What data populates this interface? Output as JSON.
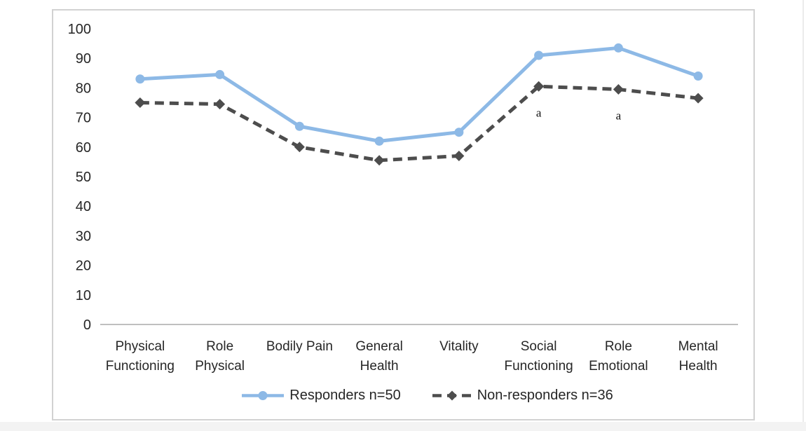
{
  "chart_data": {
    "type": "line",
    "title": "",
    "xlabel": "",
    "ylabel": "",
    "ylim": [
      0,
      100
    ],
    "yticks": [
      100,
      90,
      80,
      70,
      60,
      50,
      40,
      30,
      20,
      10,
      0
    ],
    "grid": false,
    "legend_position": "bottom",
    "categories": [
      [
        "Physical",
        "Functioning"
      ],
      [
        "Role",
        "Physical"
      ],
      [
        "Bodily Pain"
      ],
      [
        "General",
        "Health"
      ],
      [
        "Vitality"
      ],
      [
        "Social",
        "Functioning"
      ],
      [
        "Role",
        "Emotional"
      ],
      [
        "Mental",
        "Health"
      ]
    ],
    "series": [
      {
        "name": "Responders n=50",
        "values": [
          83,
          84.5,
          67,
          62,
          65,
          91,
          93.5,
          84
        ],
        "color": "#8DB9E6",
        "line_style": "solid",
        "marker": "circle"
      },
      {
        "name": "Non-responders n=36",
        "values": [
          75,
          74.5,
          60,
          55.5,
          57,
          80.5,
          79.5,
          76.5
        ],
        "color": "#4D4D4D",
        "line_style": "dashed",
        "marker": "diamond"
      }
    ],
    "annotations": [
      {
        "series_index": 1,
        "category_index": 5,
        "text": "a"
      },
      {
        "series_index": 1,
        "category_index": 6,
        "text": "a"
      }
    ],
    "colors": {
      "axis_line": "#BFBFBF",
      "text": "#262626",
      "chart_border": "#D2D2D2"
    }
  }
}
